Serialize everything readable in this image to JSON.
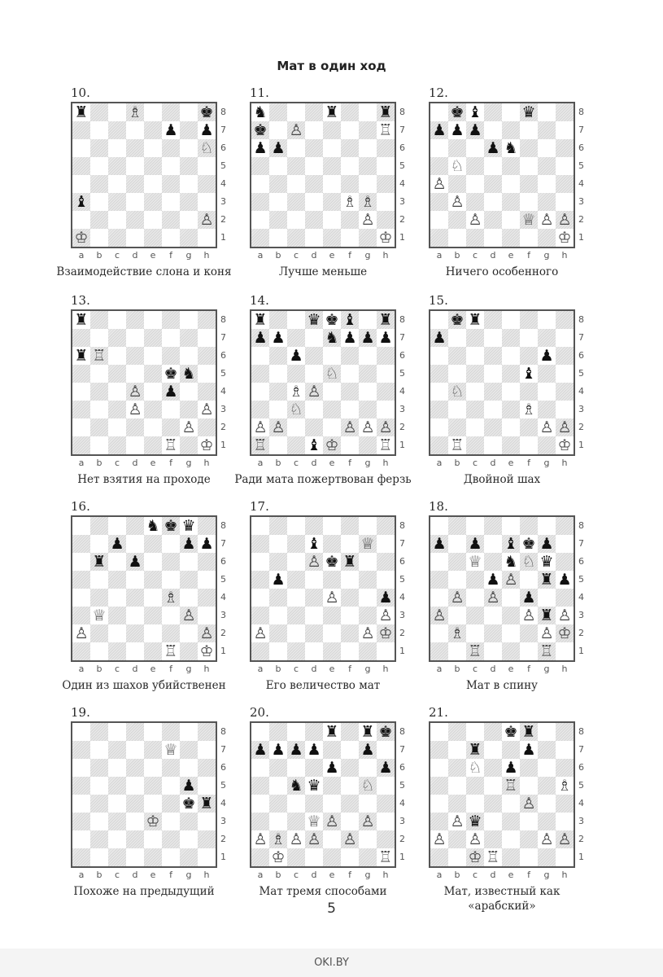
{
  "title": "Мат в один ход",
  "files": [
    "a",
    "b",
    "c",
    "d",
    "e",
    "f",
    "g",
    "h"
  ],
  "ranks": [
    "8",
    "7",
    "6",
    "5",
    "4",
    "3",
    "2",
    "1"
  ],
  "puzzles": [
    {
      "number": "10.",
      "fen": "r2B3k/5p1p/7N/8/8/b7/7P/K7",
      "caption": "Взаимодействие слона и коня"
    },
    {
      "number": "11.",
      "fen": "n3r2r/k1P4R/pp6/8/8/5BB1/6P1/7K",
      "caption": "Лучше меньше"
    },
    {
      "number": "12.",
      "fen": "1kb2q2/ppp5/3pn3/1N6/P7/1P6/2P2QPP/7K",
      "caption": "Ничего особенного"
    },
    {
      "number": "13.",
      "fen": "r7/8/rR6/5kn1/3P1p2/3P3P/6P1/5R1K",
      "caption": "Нет взятия на проходе"
    },
    {
      "number": "14.",
      "fen": "r2qkb1r/pp2nppp/2p5/4N3/2BP4/2N5/PP3PPP/R2bK2R",
      "caption": "Ради мата пожертвован ферзь"
    },
    {
      "number": "15.",
      "fen": "1kr5/p7/6p1/5b2/1N6/5B2/6PP/1R5K",
      "caption": "Двойной шах"
    },
    {
      "number": "16.",
      "fen": "4nkq1/2p3pp/1r1p4/8/5B2/1Q4P1/P6P/5R1K",
      "caption": "Один из шахов убийственен"
    },
    {
      "number": "17.",
      "fen": "8/3b2Q1/3Pkr2/1p6/4P2p/7P/P5PK/8",
      "caption": "Его величество мат"
    },
    {
      "number": "18.",
      "fen": "8/p1p1bkp1/2Q1nNq1/3pP1rp/1P1P1p2/P4PrP/1B4PK/2R3R1",
      "caption": "Мат в спину"
    },
    {
      "number": "19.",
      "fen": "8/5Q2/8/6p1/6kr/4K3/8/8",
      "caption": "Похоже на предыдущий"
    },
    {
      "number": "20.",
      "fen": "4r1rk/pppp2p1/4p2p/2nq2N1/8/3QP1P1/PBPP1P2/1K5R",
      "caption": "Мат тремя способами"
    },
    {
      "number": "21.",
      "fen": "4kr2/2r2p2/2N1p3/4R2B/5P2/1Pq5/P1P3PP/2KR4",
      "caption": "Мат, известный как «арабский»"
    }
  ],
  "page_number": "5",
  "watermark": "OKI.BY"
}
